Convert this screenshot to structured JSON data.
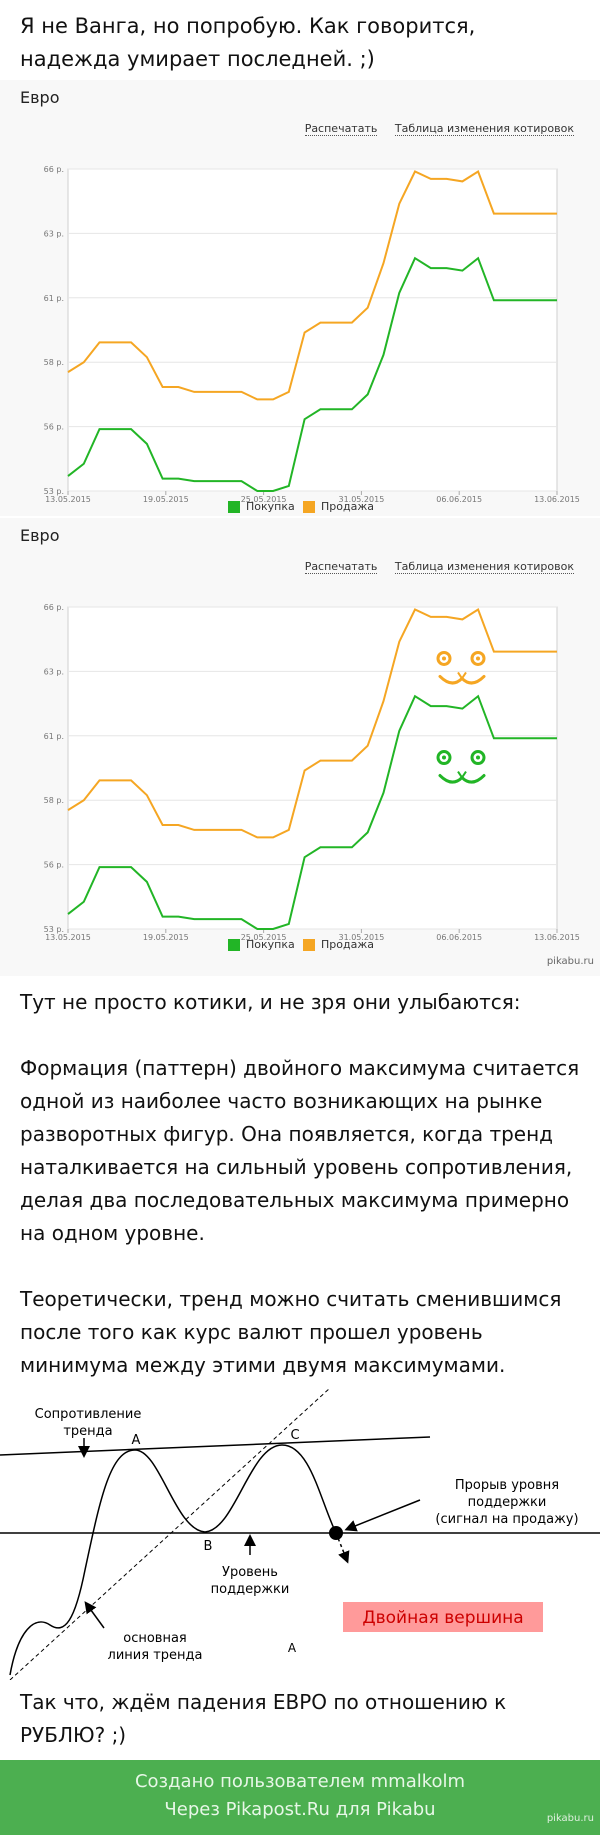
{
  "intro_text": "Я не Ванга, но попробую. Как говорится, надежда умирает последней. ;)",
  "panels": [
    {
      "title": "Евро",
      "links": {
        "print": "Распечатать",
        "table": "Таблица изменения котировок"
      },
      "legend": {
        "buy": "Покупка",
        "sell": "Продажа"
      },
      "has_cats": false
    },
    {
      "title": "Евро",
      "links": {
        "print": "Распечатать",
        "table": "Таблица изменения котировок"
      },
      "legend": {
        "buy": "Покупка",
        "sell": "Продажа"
      },
      "has_cats": true
    }
  ],
  "chart_data": {
    "type": "line",
    "title": "Евро",
    "y_ticks": [
      "53 р.",
      "56 р.",
      "58 р.",
      "61 р.",
      "63 р.",
      "66 р."
    ],
    "x_ticks": [
      "13.05.2015",
      "19.05.2015",
      "25.05.2015",
      "31.05.2015",
      "06.06.2015",
      "13.06.2015"
    ],
    "ylim": [
      53,
      66
    ],
    "colors": {
      "buy": "#22b526",
      "sell": "#f5a623"
    },
    "x": [
      0,
      1,
      2,
      3,
      4,
      5,
      6,
      7,
      8,
      9,
      10,
      11,
      12,
      13,
      14,
      15,
      16,
      17,
      18,
      19,
      20,
      21,
      22,
      23,
      24,
      25,
      26,
      27,
      28,
      29,
      30,
      31
    ],
    "series": [
      {
        "name": "Покупка",
        "values": [
          53.6,
          54.1,
          55.5,
          55.5,
          55.5,
          54.9,
          53.5,
          53.5,
          53.4,
          53.4,
          53.4,
          53.4,
          53.0,
          53.0,
          53.2,
          55.9,
          56.3,
          56.3,
          56.3,
          56.9,
          58.5,
          61.0,
          62.4,
          62.0,
          62.0,
          61.9,
          62.4,
          60.7,
          60.7,
          60.7,
          60.7,
          60.7
        ]
      },
      {
        "name": "Продажа",
        "values": [
          57.8,
          58.2,
          59.0,
          59.0,
          59.0,
          58.4,
          57.2,
          57.2,
          57.0,
          57.0,
          57.0,
          57.0,
          56.7,
          56.7,
          57.0,
          59.4,
          59.8,
          59.8,
          59.8,
          60.4,
          62.2,
          64.6,
          65.9,
          65.6,
          65.6,
          65.5,
          65.9,
          64.2,
          64.2,
          64.2,
          64.2,
          64.2
        ]
      }
    ]
  },
  "watermark": "pikabu.ru",
  "body_text_1": "Тут не просто котики, и не зря они улыбаются:",
  "body_text_2": "Формация (паттерн) двойного максимума считается одной из наиболее часто возникающих на рынке разворотных фигур. Она появляется, когда тренд наталкивается на сильный уровень сопротивления, делая два последовательных максимума примерно на одном уровне.",
  "body_text_3": "Теоретически, тренд можно считать сменившимся после того как курс валют прошел уровень минимума между этими двумя максимумами.",
  "diagram": {
    "resistance_1": "Сопротивление",
    "resistance_2": "тренда",
    "label_a": "A",
    "label_b": "B",
    "label_c": "C",
    "support_1": "Уровень",
    "support_2": "поддержки",
    "breakout_1": "Прорыв уровня",
    "breakout_2": "поддержки",
    "breakout_3": "(сигнал на продажу)",
    "trend_1": "основная",
    "trend_2": "линия тренда",
    "pattern_name": "Двойная вершина",
    "stray_a": "A",
    "colors": {
      "pattern_bg": "#ff9a9a",
      "pattern_text": "#cc0000"
    }
  },
  "conclusion": "Так что, ждём падения ЕВРО по отношению к РУБЛЮ? ;)",
  "footer_line_1": "Создано пользователем mmalkolm",
  "footer_line_2": "Через Pikapost.Ru для Pikabu",
  "footer_watermark": "pikabu.ru"
}
